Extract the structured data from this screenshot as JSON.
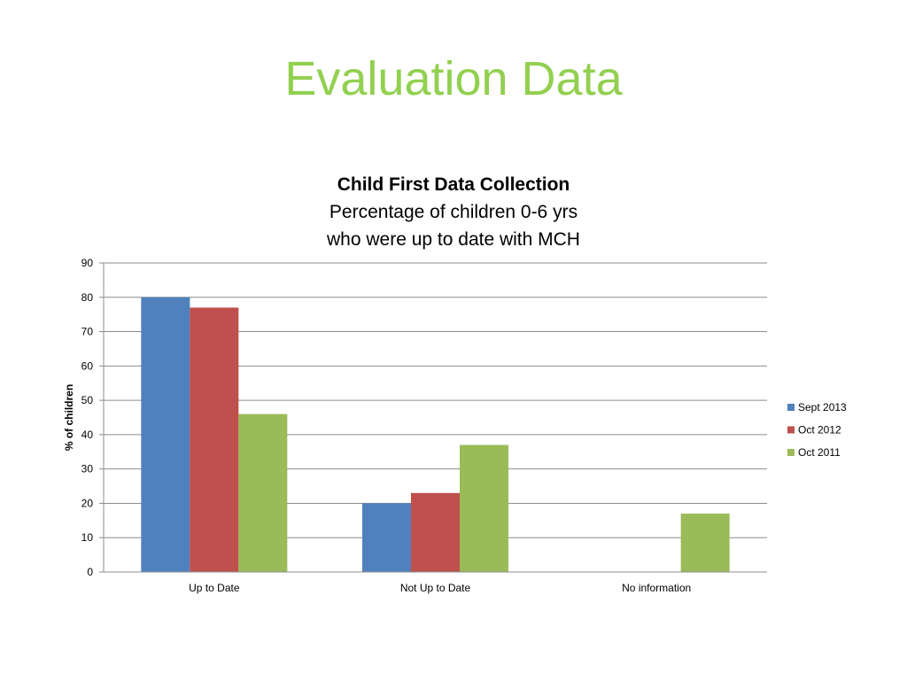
{
  "slide": {
    "title": "Evaluation Data"
  },
  "chart_data": {
    "type": "bar",
    "title": "Child First Data Collection",
    "subtitle": [
      "Percentage  of children 0-6 yrs",
      "who were up to date with MCH"
    ],
    "xlabel": "",
    "ylabel": "% of children",
    "ylim": [
      0,
      90
    ],
    "yticks": [
      0,
      10,
      20,
      30,
      40,
      50,
      60,
      70,
      80,
      90
    ],
    "grid": true,
    "legend_position": "right",
    "categories": [
      "Up to Date",
      "Not Up to Date",
      "No information"
    ],
    "series": [
      {
        "name": "Sept 2013",
        "color": "#4f81bd",
        "values": [
          80,
          20,
          null
        ]
      },
      {
        "name": "Oct 2012",
        "color": "#c0504d",
        "values": [
          77,
          23,
          null
        ]
      },
      {
        "name": "Oct 2011",
        "color": "#9bbb59",
        "values": [
          46,
          37,
          17
        ]
      }
    ]
  }
}
